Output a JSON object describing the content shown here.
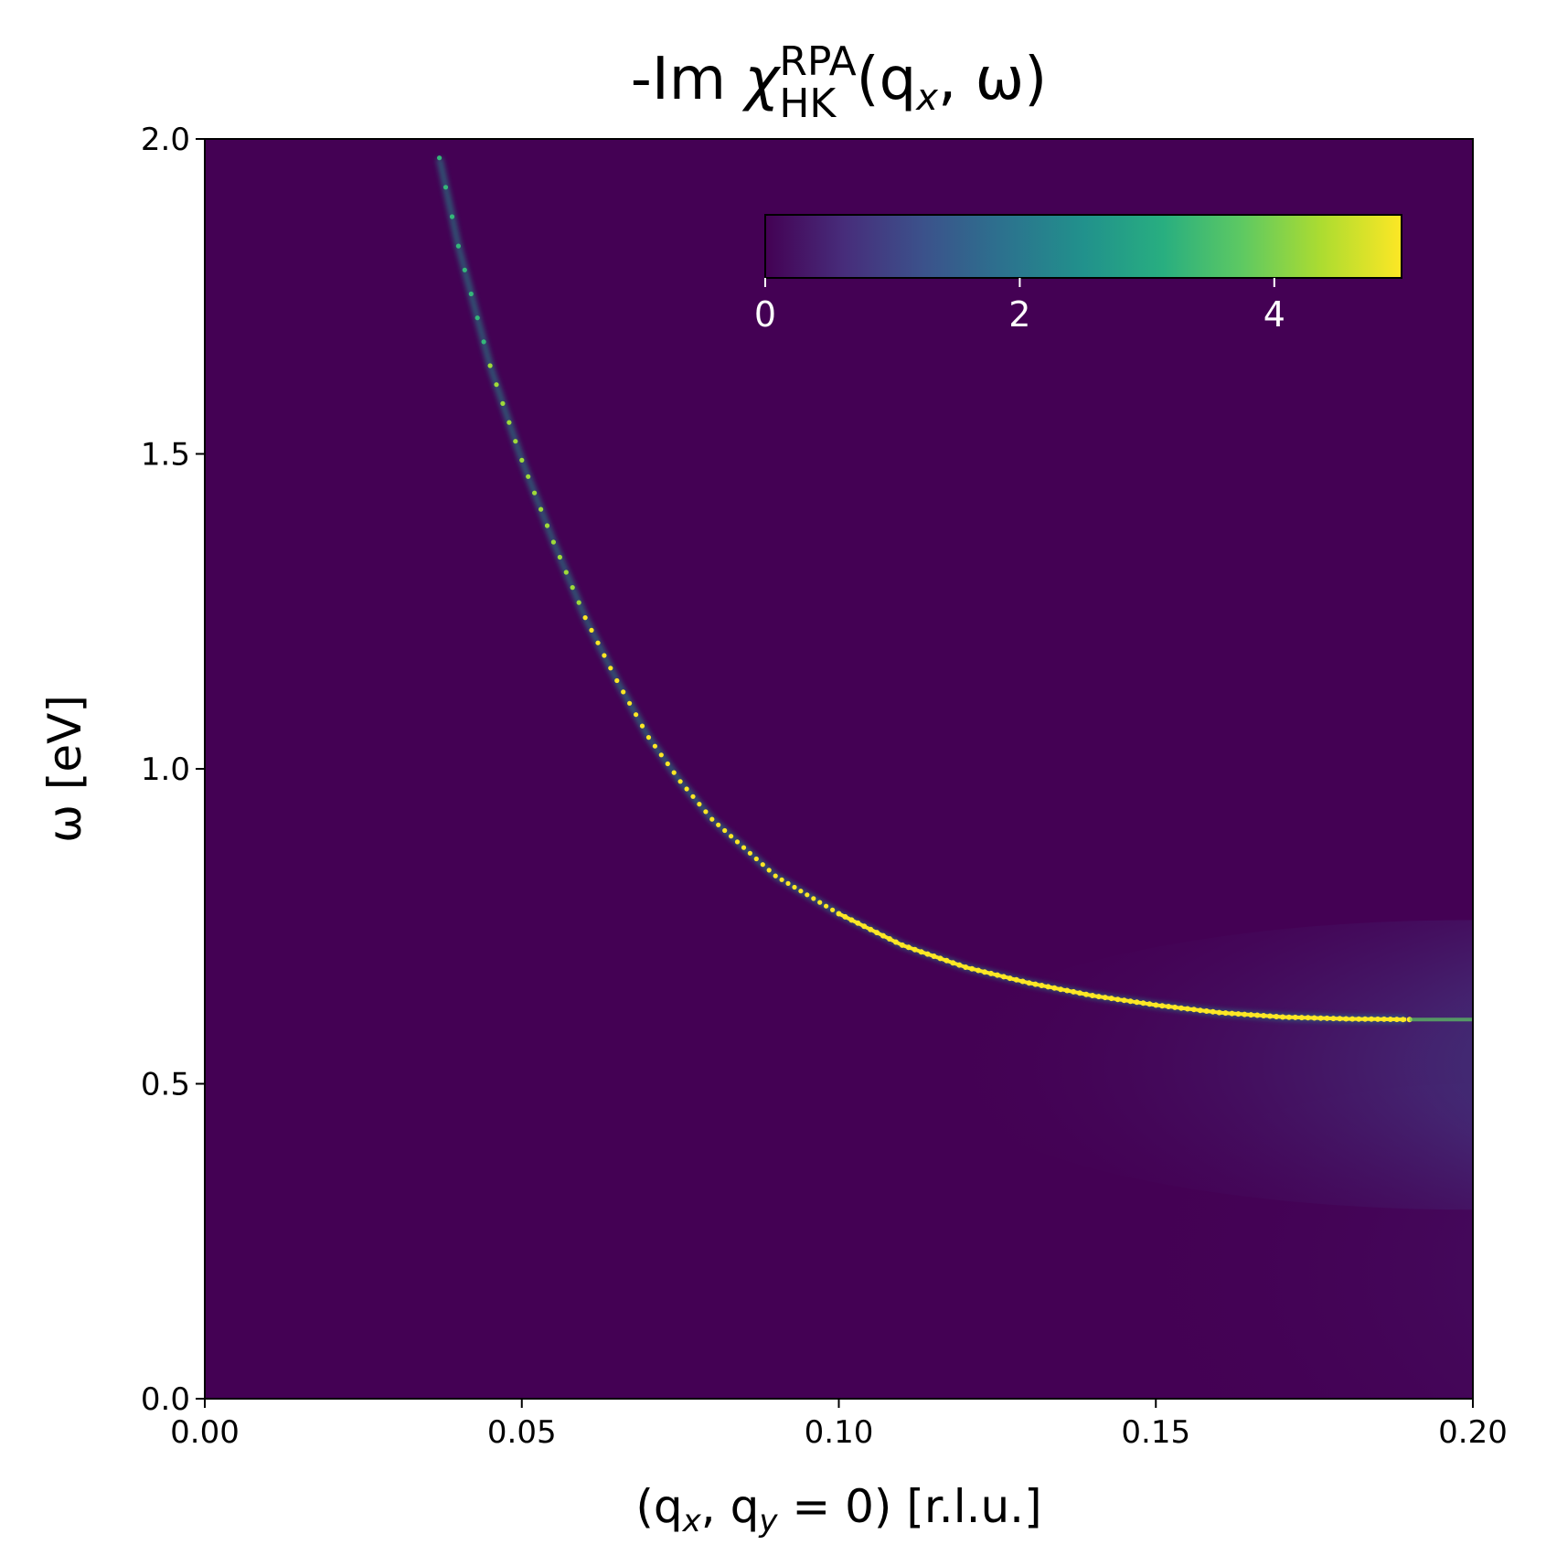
{
  "chart_data": {
    "type": "heatmap",
    "title": {
      "prefix": "-Im ",
      "symbol": "χ",
      "superscript": "RPA",
      "subscript": "HK",
      "args": "(q",
      "args_sub": "x",
      "args_tail": ", ω)"
    },
    "xlabel": {
      "open": "(q",
      "sub1": "x",
      "mid": ", q",
      "sub2": "y",
      "tail": " = 0) [r.l.u.]"
    },
    "ylabel": "ω [eV]",
    "xlim": [
      0.0,
      0.2
    ],
    "ylim": [
      0.0,
      2.0
    ],
    "xticks": [
      "0.00",
      "0.05",
      "0.10",
      "0.15",
      "0.20"
    ],
    "yticks": [
      "0.0",
      "0.5",
      "1.0",
      "1.5",
      "2.0"
    ],
    "colormap": "viridis",
    "colorbar": {
      "orientation": "horizontal",
      "placement": "top-right (inset)",
      "range": [
        0,
        5
      ],
      "ticks": [
        "0",
        "2",
        "4"
      ]
    },
    "background_color": "#440154",
    "plasmon_branch": {
      "description_values": "peak position omega(q) in eV",
      "q": [
        0.037,
        0.04,
        0.045,
        0.05,
        0.055,
        0.06,
        0.065,
        0.07,
        0.075,
        0.08,
        0.09,
        0.1,
        0.11,
        0.12,
        0.13,
        0.14,
        0.15,
        0.16,
        0.17,
        0.18,
        0.19
      ],
      "omega": [
        1.97,
        1.83,
        1.64,
        1.49,
        1.36,
        1.24,
        1.14,
        1.05,
        0.98,
        0.92,
        0.83,
        0.77,
        0.72,
        0.685,
        0.66,
        0.64,
        0.625,
        0.613,
        0.606,
        0.603,
        0.602
      ]
    },
    "continuum": {
      "q_start": 0.12,
      "q_end": 0.2,
      "omega_center": 0.53,
      "peak_value": 2.4
    }
  }
}
